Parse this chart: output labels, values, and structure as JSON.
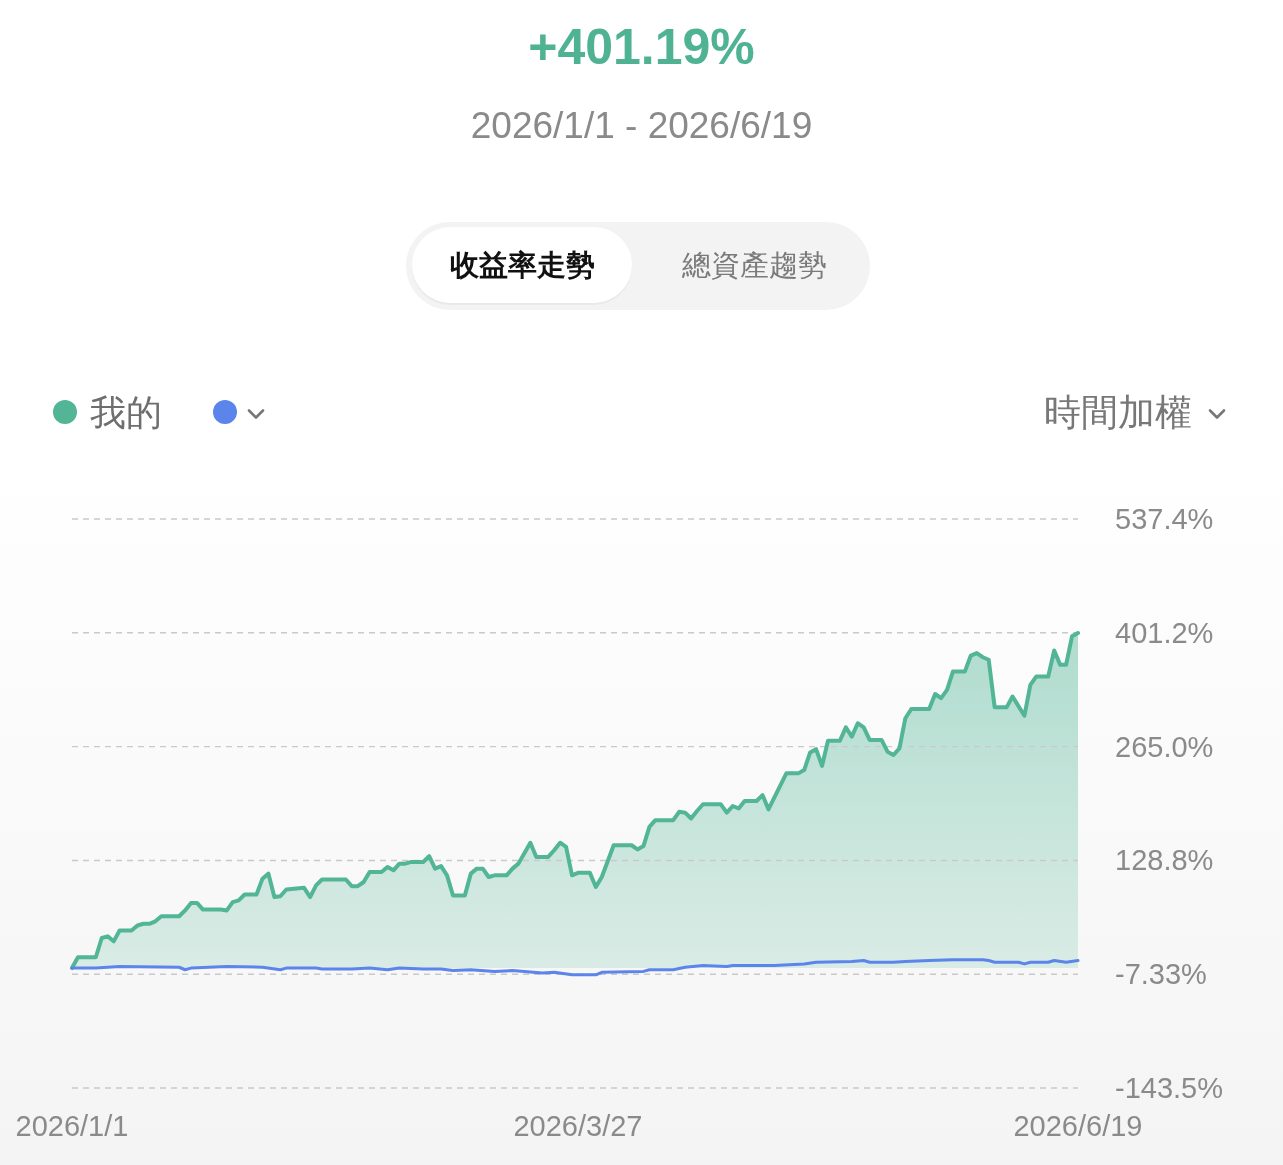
{
  "chart_data": {
    "type": "line",
    "title": "+401.19%",
    "subtitle": "2026/1/1 - 2026/6/19",
    "annotations": [
      "收益率走勢",
      "總資產趨勢",
      "時間加權"
    ],
    "legend": "top left",
    "grid": "y",
    "xlim": [
      "2026-01-01",
      "2026-06-19"
    ],
    "xticks": [
      {
        "value": "2026-01-01",
        "label": "2026/1/1"
      },
      {
        "value": "2026-03-27",
        "label": "2026/3/27"
      },
      {
        "value": "2026-06-19",
        "label": "2026/6/19"
      }
    ],
    "ylim": [
      -143.5,
      537.4
    ],
    "yticks": [
      {
        "value": -143.5,
        "label": "-143.5%"
      },
      {
        "value": -7.33,
        "label": "-7.33%"
      },
      {
        "value": 128.8,
        "label": "128.8%"
      },
      {
        "value": 265.0,
        "label": "265.0%"
      },
      {
        "value": 401.2,
        "label": "401.2%"
      },
      {
        "value": 537.4,
        "label": "537.4%"
      }
    ],
    "series": [
      {
        "name": "我的",
        "type": "area",
        "color": "#52b596",
        "x": [
          "2026-01-01",
          "2026-01-02",
          "2026-01-05",
          "2026-01-06",
          "2026-01-07",
          "2026-01-08",
          "2026-01-09",
          "2026-01-11",
          "2026-01-12",
          "2026-01-13",
          "2026-01-14",
          "2026-01-15",
          "2026-01-16",
          "2026-01-19",
          "2026-01-20",
          "2026-01-21",
          "2026-01-22",
          "2026-01-23",
          "2026-01-26",
          "2026-01-27",
          "2026-01-28",
          "2026-01-29",
          "2026-01-30",
          "2026-02-01",
          "2026-02-02",
          "2026-02-03",
          "2026-02-04",
          "2026-02-05",
          "2026-02-06",
          "2026-02-09",
          "2026-02-10",
          "2026-02-11",
          "2026-02-12",
          "2026-02-16",
          "2026-02-17",
          "2026-02-18",
          "2026-02-19",
          "2026-02-20",
          "2026-02-22",
          "2026-02-23",
          "2026-02-24",
          "2026-02-25",
          "2026-02-26",
          "2026-02-27",
          "2026-03-01",
          "2026-03-02",
          "2026-03-03",
          "2026-03-04",
          "2026-03-05",
          "2026-03-06",
          "2026-03-08",
          "2026-03-09",
          "2026-03-10",
          "2026-03-11",
          "2026-03-12",
          "2026-03-13",
          "2026-03-15",
          "2026-03-16",
          "2026-03-17",
          "2026-03-19",
          "2026-03-20",
          "2026-03-22",
          "2026-03-23",
          "2026-03-24",
          "2026-03-25",
          "2026-03-26",
          "2026-03-27",
          "2026-03-29",
          "2026-03-30",
          "2026-03-31",
          "2026-04-02",
          "2026-04-05",
          "2026-04-06",
          "2026-04-07",
          "2026-04-08",
          "2026-04-09",
          "2026-04-12",
          "2026-04-13",
          "2026-04-14",
          "2026-04-15",
          "2026-04-16",
          "2026-04-17",
          "2026-04-20",
          "2026-04-21",
          "2026-04-22",
          "2026-04-23",
          "2026-04-24",
          "2026-04-26",
          "2026-04-27",
          "2026-04-28",
          "2026-05-01",
          "2026-05-03",
          "2026-05-04",
          "2026-05-05",
          "2026-05-06",
          "2026-05-07",
          "2026-05-08",
          "2026-05-10",
          "2026-05-11",
          "2026-05-12",
          "2026-05-13",
          "2026-05-14",
          "2026-05-15",
          "2026-05-17",
          "2026-05-18",
          "2026-05-19",
          "2026-05-20",
          "2026-05-21",
          "2026-05-22",
          "2026-05-25",
          "2026-05-26",
          "2026-05-27",
          "2026-05-28",
          "2026-05-29",
          "2026-05-31",
          "2026-06-01",
          "2026-06-02",
          "2026-06-03",
          "2026-06-04",
          "2026-06-05",
          "2026-06-07",
          "2026-06-08",
          "2026-06-10",
          "2026-06-11",
          "2026-06-12",
          "2026-06-14",
          "2026-06-15",
          "2026-06-16",
          "2026-06-17",
          "2026-06-18",
          "2026-06-19"
        ],
        "values": [
          0,
          13,
          13,
          36,
          38,
          32,
          45,
          45,
          51,
          53,
          53,
          56,
          62,
          62,
          69,
          78,
          78,
          70,
          70,
          69,
          79,
          81,
          88,
          88,
          107,
          113,
          85,
          86,
          94,
          96,
          85,
          99,
          106,
          106,
          98,
          98,
          103,
          115,
          115,
          121,
          117,
          125,
          125,
          127,
          127,
          134,
          119,
          122,
          111,
          87,
          87,
          113,
          119,
          119,
          109,
          111,
          111,
          119,
          125,
          150,
          133,
          133,
          141,
          150,
          145,
          111,
          114,
          114,
          97,
          109,
          147,
          147,
          142,
          146,
          169,
          177,
          177,
          187,
          186,
          179,
          188,
          196,
          196,
          186,
          194,
          191,
          200,
          200,
          207,
          190,
          233,
          233,
          237,
          258,
          262,
          242,
          272,
          272,
          288,
          277,
          293,
          288,
          273,
          273,
          259,
          255,
          263,
          299,
          310,
          310,
          328,
          323,
          333,
          355,
          355,
          374,
          377,
          372,
          369,
          312,
          312,
          325,
          302,
          339,
          349,
          349,
          380,
          363,
          363,
          397,
          401
        ]
      },
      {
        "type": "line",
        "color": "#5b85ea",
        "x": [
          "2026-01-01",
          "2026-01-05",
          "2026-01-09",
          "2026-01-19",
          "2026-01-20",
          "2026-01-21",
          "2026-01-27",
          "2026-02-02",
          "2026-02-05",
          "2026-02-06",
          "2026-02-11",
          "2026-02-12",
          "2026-02-17",
          "2026-02-20",
          "2026-02-23",
          "2026-02-25",
          "2026-03-01",
          "2026-03-04",
          "2026-03-06",
          "2026-03-09",
          "2026-03-13",
          "2026-03-16",
          "2026-03-21",
          "2026-03-23",
          "2026-03-26",
          "2026-03-30",
          "2026-03-31",
          "2026-04-07",
          "2026-04-08",
          "2026-04-12",
          "2026-04-14",
          "2026-04-17",
          "2026-04-21",
          "2026-04-22",
          "2026-04-26",
          "2026-04-29",
          "2026-05-04",
          "2026-05-06",
          "2026-05-12",
          "2026-05-14",
          "2026-05-15",
          "2026-05-19",
          "2026-05-21",
          "2026-05-25",
          "2026-05-29",
          "2026-06-03",
          "2026-06-04",
          "2026-06-05",
          "2026-06-09",
          "2026-06-10",
          "2026-06-11",
          "2026-06-14",
          "2026-06-15",
          "2026-06-17",
          "2026-06-19"
        ],
        "values": [
          0,
          0,
          2,
          1,
          -2,
          0,
          2,
          1,
          -2,
          0,
          0,
          -1,
          -1,
          0,
          -2,
          0,
          -1,
          -1,
          -3,
          -2,
          -4,
          -3,
          -6,
          -5,
          -8,
          -8,
          -5,
          -4,
          -2,
          -2,
          1,
          3,
          2,
          3,
          3,
          3,
          5,
          7,
          8,
          9,
          7,
          7,
          8,
          9,
          10,
          10,
          9,
          7,
          7,
          5,
          7,
          7,
          9,
          7,
          9
        ]
      }
    ]
  }
}
